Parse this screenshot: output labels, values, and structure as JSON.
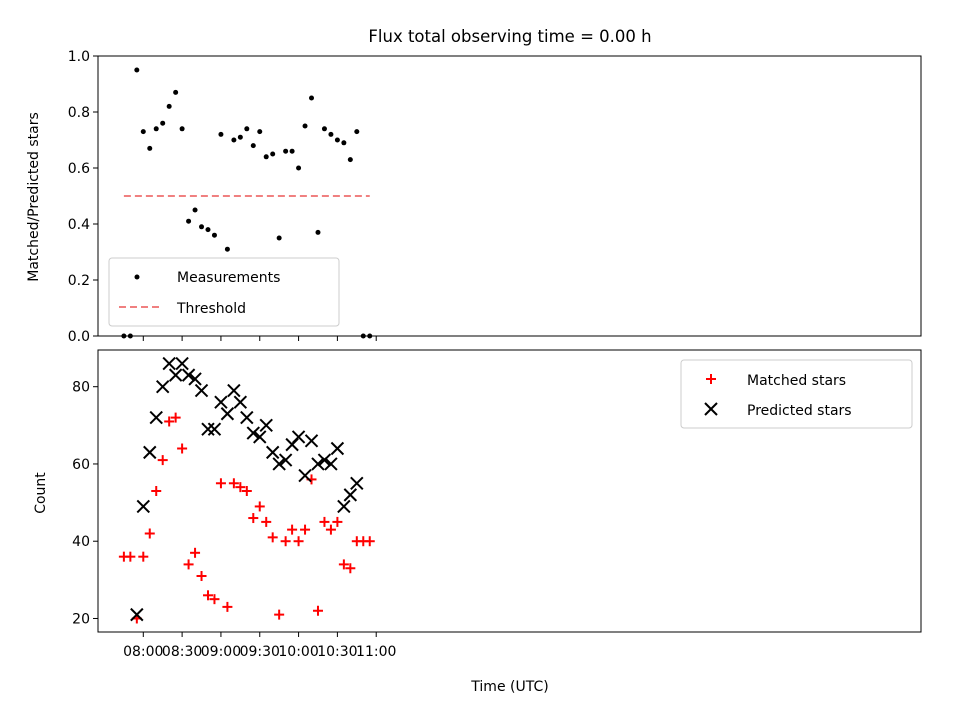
{
  "chart_data": [
    {
      "type": "scatter",
      "title": "Flux total observing time = 0.00 h",
      "ylabel": "Matched/Predicted stars",
      "xlabel": "",
      "xlim": [
        445,
        1081
      ],
      "ylim": [
        0,
        1
      ],
      "yticks": [
        0,
        0.2,
        0.4,
        0.6,
        0.8,
        1.0
      ],
      "ytick_labels": [
        "0.0",
        "0.2",
        "0.4",
        "0.6",
        "0.8",
        "1.0"
      ],
      "xticks": [
        480,
        510,
        540,
        570,
        600,
        630,
        660
      ],
      "legend_position": "lower-left",
      "series": [
        {
          "name": "Measurements",
          "marker": "dot",
          "color": "#000000",
          "x": [
            465,
            470,
            475,
            480,
            485,
            490,
            495,
            500,
            505,
            510,
            515,
            520,
            525,
            530,
            535,
            540,
            545,
            550,
            555,
            560,
            565,
            570,
            575,
            580,
            585,
            590,
            595,
            600,
            605,
            610,
            615,
            620,
            625,
            630,
            635,
            640,
            645,
            650,
            655,
            660
          ],
          "y": [
            0.0,
            0.0,
            0.95,
            0.73,
            0.67,
            0.74,
            0.76,
            0.82,
            0.87,
            0.74,
            0.41,
            0.45,
            0.39,
            0.38,
            0.36,
            0.72,
            0.31,
            0.7,
            0.71,
            0.74,
            0.68,
            0.73,
            0.64,
            0.65,
            0.35,
            0.66,
            0.66,
            0.6,
            0.75,
            0.85,
            0.37,
            0.74,
            0.72,
            0.7,
            0.69,
            0.63,
            0.73,
            0.0,
            0.0,
            null
          ]
        },
        {
          "name": "Threshold",
          "marker": "dashed-line",
          "color": "#f08080",
          "x": [
            465,
            655
          ],
          "y": [
            0.5,
            0.5
          ]
        }
      ]
    },
    {
      "type": "scatter",
      "title": "",
      "ylabel": "Count",
      "xlabel": "Time (UTC)",
      "xlim": [
        445,
        1081
      ],
      "ylim": [
        16.5,
        89.5
      ],
      "yticks": [
        20,
        40,
        60,
        80
      ],
      "ytick_labels": [
        "20",
        "40",
        "60",
        "80"
      ],
      "xticks": [
        480,
        510,
        540,
        570,
        600,
        630,
        660
      ],
      "xtick_labels": [
        "08:00",
        "08:30",
        "09:00",
        "09:30",
        "10:00",
        "10:30",
        "11:00"
      ],
      "legend_position": "upper-right",
      "series": [
        {
          "name": "Matched stars",
          "marker": "plus",
          "color": "#ff0000",
          "x": [
            465,
            470,
            475,
            480,
            485,
            490,
            495,
            500,
            505,
            510,
            515,
            520,
            525,
            530,
            535,
            540,
            545,
            550,
            555,
            560,
            565,
            570,
            575,
            580,
            585,
            590,
            595,
            600,
            605,
            610,
            615,
            620,
            625,
            630,
            635,
            640,
            645,
            650,
            655
          ],
          "y": [
            36,
            36,
            20,
            36,
            42,
            53,
            61,
            71,
            72,
            64,
            34,
            37,
            31,
            26,
            25,
            55,
            23,
            55,
            54,
            53,
            46,
            49,
            45,
            41,
            21,
            40,
            43,
            40,
            43,
            56,
            22,
            45,
            43,
            45,
            34,
            33,
            40,
            40,
            40
          ]
        },
        {
          "name": "Predicted stars",
          "marker": "x",
          "color": "#000000",
          "x": [
            475,
            480,
            485,
            490,
            495,
            500,
            505,
            510,
            515,
            520,
            525,
            530,
            535,
            540,
            545,
            550,
            555,
            560,
            565,
            570,
            575,
            580,
            585,
            590,
            595,
            600,
            605,
            610,
            615,
            620,
            625,
            630,
            635,
            640,
            645
          ],
          "y": [
            21,
            49,
            63,
            72,
            80,
            86,
            83,
            86,
            83,
            82,
            79,
            69,
            69,
            76,
            73,
            79,
            76,
            72,
            68,
            67,
            70,
            63,
            60,
            61,
            65,
            67,
            57,
            66,
            60,
            61,
            60,
            64,
            49,
            52,
            55
          ]
        }
      ]
    }
  ]
}
